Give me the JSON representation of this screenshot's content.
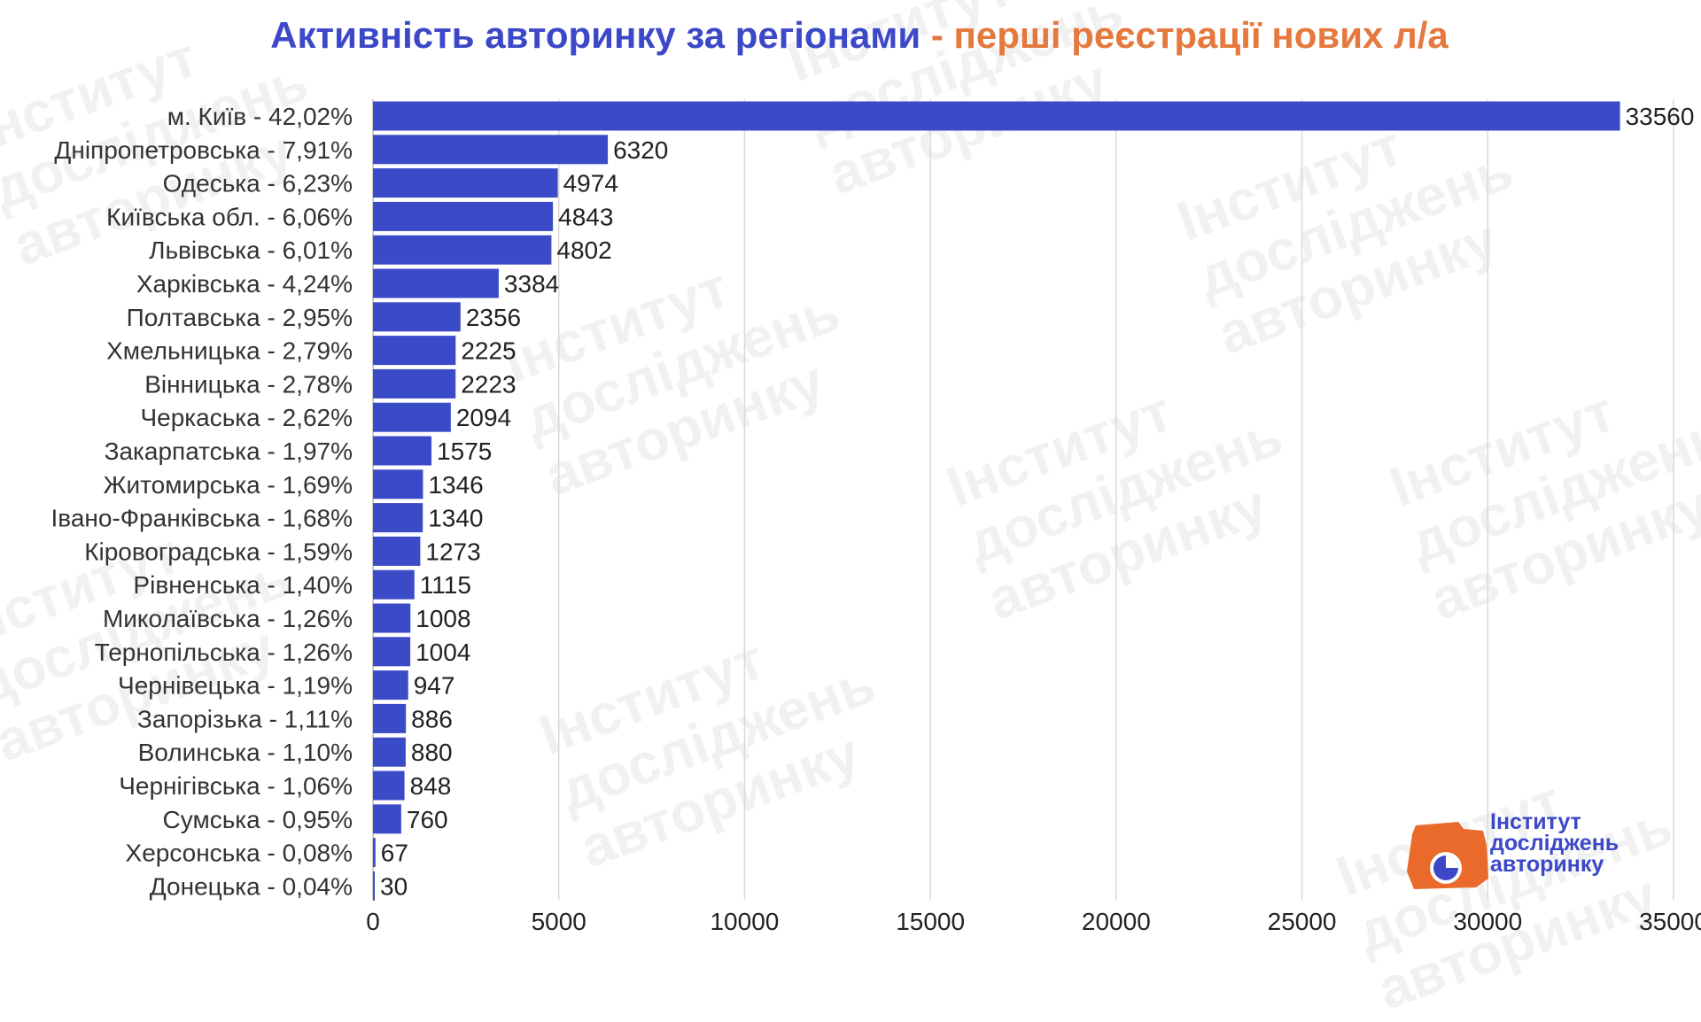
{
  "title": {
    "part1": "Активність авторинку за регіонами",
    "separator": " - ",
    "part2": "перші реєстрації нових л/а"
  },
  "logo": {
    "line1": "Інститут",
    "line2": "досліджень",
    "line3": "авторинку"
  },
  "watermark_text": "Інститут\nдосліджень\nавторинку",
  "colors": {
    "bar": "#3b4bc8",
    "title_primary": "#3c48c8",
    "title_accent": "#e5783c",
    "logo_orange": "#e96a2a",
    "grid": "#d9d9d9"
  },
  "chart_data": {
    "type": "bar",
    "orientation": "horizontal",
    "title": "Активність авторинку за регіонами - перші реєстрації нових л/а",
    "categories": [
      "м. Київ - 42,02%",
      "Дніпропетровська - 7,91%",
      "Одеська - 6,23%",
      "Київська обл. - 6,06%",
      "Львівська - 6,01%",
      "Харківська - 4,24%",
      "Полтавська - 2,95%",
      "Хмельницька - 2,79%",
      "Вінницька - 2,78%",
      "Черкаська - 2,62%",
      "Закарпатська - 1,97%",
      "Житомирська - 1,69%",
      "Івано-Франківська - 1,68%",
      "Кіровоградська - 1,59%",
      "Рівненська - 1,40%",
      "Миколаївська - 1,26%",
      "Тернопільська - 1,26%",
      "Чернівецька - 1,19%",
      "Запорізька - 1,11%",
      "Волинська - 1,10%",
      "Чернігівська - 1,06%",
      "Сумська - 0,95%",
      "Херсонська - 0,08%",
      "Донецька - 0,04%"
    ],
    "values": [
      33560,
      6320,
      4974,
      4843,
      4802,
      3384,
      2356,
      2225,
      2223,
      2094,
      1575,
      1346,
      1340,
      1273,
      1115,
      1008,
      1004,
      947,
      886,
      880,
      848,
      760,
      67,
      30
    ],
    "xlim": [
      0,
      35000
    ],
    "xticks": [
      0,
      5000,
      10000,
      15000,
      20000,
      25000,
      30000,
      35000
    ],
    "xlabel": "",
    "ylabel": "",
    "grid": "vertical",
    "legend": "none"
  }
}
